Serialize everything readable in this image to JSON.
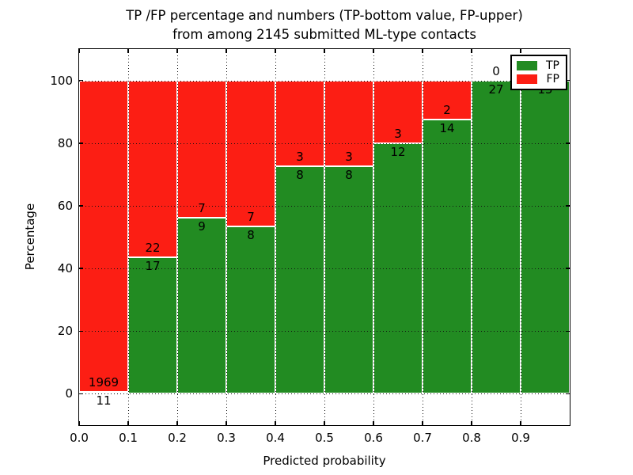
{
  "title": {
    "line1": "TP /FP percentage and numbers (TP-bottom value, FP-upper)",
    "line2": "from among 2145 submitted ML-type contacts"
  },
  "chart_data": {
    "type": "bar",
    "stacked": true,
    "normalized": "percent",
    "title": "TP /FP percentage and numbers (TP-bottom value, FP-upper) from among 2145 submitted ML-type contacts",
    "xlabel": "Predicted probability",
    "ylabel": "Percentage",
    "xlim": [
      0.0,
      1.0
    ],
    "ylim": [
      -10,
      110
    ],
    "grid": "dotted",
    "total_contacts": 2145,
    "x_tick_labels": [
      "0.0",
      "0.1",
      "0.2",
      "0.3",
      "0.4",
      "0.5",
      "0.6",
      "0.7",
      "0.8",
      "0.9"
    ],
    "y_tick_values": [
      0,
      20,
      40,
      60,
      80,
      100
    ],
    "y_tick_labels": [
      "0",
      "20",
      "40",
      "60",
      "80",
      "100"
    ],
    "categories": [
      "0.0-0.1",
      "0.1-0.2",
      "0.2-0.3",
      "0.3-0.4",
      "0.4-0.5",
      "0.5-0.6",
      "0.6-0.7",
      "0.7-0.8",
      "0.8-0.9",
      "0.9-1.0"
    ],
    "series": [
      {
        "name": "TP",
        "color": "#228B22",
        "counts": [
          11,
          17,
          9,
          8,
          8,
          8,
          12,
          14,
          27,
          15
        ]
      },
      {
        "name": "FP",
        "color": "#FC1E14",
        "counts": [
          1969,
          22,
          7,
          7,
          3,
          3,
          3,
          2,
          0,
          0
        ]
      }
    ],
    "legend": {
      "position": "upper right",
      "entries": [
        "TP",
        "FP"
      ]
    }
  }
}
